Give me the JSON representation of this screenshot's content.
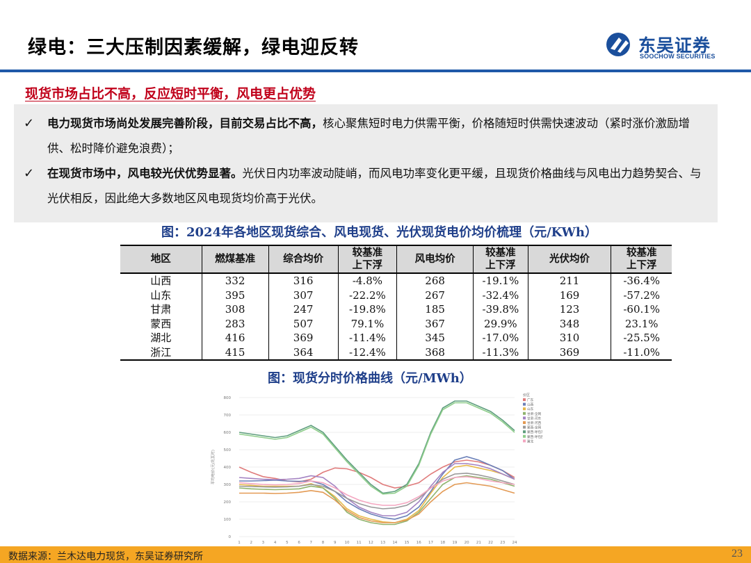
{
  "header": {
    "title": "绿电：三大压制因素缓解，绿电迎反转",
    "logo_cn": "东吴证券",
    "logo_en": "SOOCHOW SECURITIES",
    "logo_icon": "soochow-logo-icon",
    "brand_color": "#1f59a8"
  },
  "section": {
    "heading": "现货市场占比不高，反应短时平衡，风电更占优势"
  },
  "bullets": [
    {
      "check": "✓",
      "bold": "电力现货市场尚处发展完善阶段，目前交易占比不高，",
      "text": "核心聚焦短时电力供需平衡，价格随短时供需快速波动（紧时涨价激励增供、松时降价避免浪费）；"
    },
    {
      "check": "✓",
      "bold": "在现货市场中，风电较光伏优势显著。",
      "text": "光伏日内功率波动陡峭，而风电功率变化更平缓，且现货价格曲线与风电出力趋势契合、与光伏相反，因此绝大多数地区风电现货均价高于光伏。"
    }
  ],
  "table": {
    "caption": "图：2024年各地区现货综合、风电现货、光伏现货电价均价梳理（元/KWh）",
    "headers": [
      "地区",
      "燃煤基准",
      "综合均价",
      "较基准\n上下浮",
      "风电均价",
      "较基准\n上下浮",
      "光伏均价",
      "较基准\n上下浮"
    ],
    "rows": [
      [
        "山西",
        "332",
        "316",
        "-4.8%",
        "268",
        "-19.1%",
        "211",
        "-36.4%"
      ],
      [
        "山东",
        "395",
        "307",
        "-22.2%",
        "267",
        "-32.4%",
        "169",
        "-57.2%"
      ],
      [
        "甘肃",
        "308",
        "247",
        "-19.8%",
        "185",
        "-39.8%",
        "123",
        "-60.1%"
      ],
      [
        "蒙西",
        "283",
        "507",
        "79.1%",
        "367",
        "29.9%",
        "348",
        "23.1%"
      ],
      [
        "湖北",
        "416",
        "369",
        "-11.4%",
        "345",
        "-17.0%",
        "310",
        "-25.5%"
      ],
      [
        "浙江",
        "415",
        "364",
        "-12.4%",
        "368",
        "-11.3%",
        "369",
        "-11.0%"
      ]
    ]
  },
  "chart": {
    "caption": "图：现货分时价格曲线（元/MWh）",
    "ylabel": "平均电价(元/兆瓦时)",
    "legend_title": "价区",
    "ylim": [
      0,
      800
    ],
    "yticks": [
      "0",
      "100",
      "200",
      "300",
      "400",
      "500",
      "600",
      "700",
      "800"
    ],
    "x": [
      "1",
      "2",
      "3",
      "4",
      "5",
      "6",
      "7",
      "8",
      "9",
      "10",
      "11",
      "12",
      "13",
      "14",
      "15",
      "16",
      "17",
      "18",
      "19",
      "20",
      "21",
      "22",
      "23",
      "24"
    ],
    "series": [
      {
        "name": "广东",
        "color": "#e07b7b",
        "values": [
          400,
          370,
          345,
          335,
          320,
          315,
          330,
          370,
          395,
          390,
          370,
          340,
          300,
          280,
          290,
          310,
          360,
          400,
          430,
          440,
          430,
          410,
          380,
          340
        ]
      },
      {
        "name": "山西",
        "color": "#6a7fb8",
        "values": [
          320,
          320,
          322,
          325,
          320,
          318,
          320,
          300,
          260,
          200,
          160,
          130,
          110,
          100,
          120,
          170,
          260,
          360,
          440,
          460,
          440,
          410,
          380,
          330
        ]
      },
      {
        "name": "山东",
        "color": "#e7b94a",
        "values": [
          300,
          295,
          290,
          290,
          290,
          290,
          305,
          280,
          230,
          160,
          120,
          100,
          85,
          80,
          100,
          150,
          250,
          340,
          400,
          410,
          395,
          380,
          360,
          330
        ]
      },
      {
        "name": "甘肃-全网",
        "color": "#8fb36c",
        "values": [
          280,
          275,
          272,
          270,
          272,
          275,
          290,
          280,
          220,
          140,
          100,
          80,
          70,
          70,
          90,
          140,
          220,
          300,
          340,
          350,
          340,
          330,
          310,
          290
        ]
      },
      {
        "name": "甘肃-河东",
        "color": "#a382c2",
        "values": [
          340,
          335,
          330,
          328,
          330,
          335,
          350,
          340,
          290,
          220,
          170,
          140,
          120,
          120,
          140,
          200,
          290,
          370,
          420,
          420,
          410,
          390,
          360,
          330
        ]
      },
      {
        "name": "甘肃-河西",
        "color": "#e39a54",
        "values": [
          250,
          250,
          250,
          248,
          250,
          255,
          265,
          255,
          210,
          150,
          110,
          90,
          80,
          80,
          95,
          130,
          200,
          260,
          300,
          310,
          300,
          290,
          270,
          250
        ]
      },
      {
        "name": "蒙西-全网",
        "color": "#999999",
        "values": [
          290,
          288,
          286,
          285,
          286,
          290,
          300,
          290,
          260,
          220,
          190,
          170,
          160,
          165,
          180,
          220,
          280,
          330,
          360,
          365,
          355,
          340,
          320,
          300
        ]
      },
      {
        "name": "蒙西-呼包东",
        "color": "#5f9e7e",
        "values": [
          600,
          590,
          580,
          570,
          580,
          610,
          640,
          600,
          520,
          440,
          370,
          300,
          250,
          260,
          300,
          420,
          600,
          740,
          780,
          780,
          750,
          720,
          670,
          610
        ]
      },
      {
        "name": "蒙西-呼包西",
        "color": "#8fce8b",
        "values": [
          590,
          580,
          570,
          560,
          570,
          600,
          630,
          590,
          510,
          430,
          360,
          290,
          245,
          250,
          290,
          410,
          590,
          730,
          770,
          770,
          740,
          710,
          660,
          600
        ]
      },
      {
        "name": "冀北",
        "color": "#f4a6c0",
        "values": [
          310,
          305,
          300,
          298,
          300,
          305,
          320,
          310,
          280,
          240,
          210,
          190,
          180,
          180,
          195,
          230,
          280,
          320,
          340,
          345,
          335,
          320,
          310,
          300
        ]
      }
    ]
  },
  "footer": {
    "source": "数据来源：兰木达电力现货，东吴证券研究所",
    "page": "23",
    "bar_color": "#f5a623"
  }
}
